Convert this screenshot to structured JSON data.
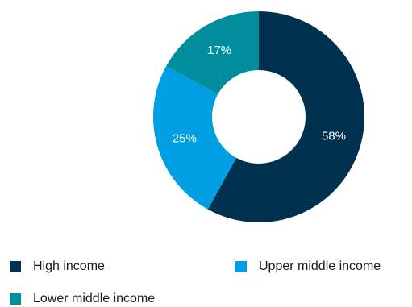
{
  "chart_data": {
    "type": "pie",
    "donut": true,
    "categories": [
      "High income",
      "Upper middle income",
      "Lower middle income"
    ],
    "values": [
      58,
      25,
      17
    ],
    "value_labels": [
      "58%",
      "25%",
      "17%"
    ],
    "colors": [
      "#00324f",
      "#009fe3",
      "#008e9e"
    ],
    "start_angle_deg": 0,
    "direction": "clockwise",
    "legend_position": "bottom"
  },
  "legend": {
    "items": [
      {
        "label": "High income",
        "color": "#00324f"
      },
      {
        "label": "Upper middle income",
        "color": "#009fe3"
      },
      {
        "label": "Lower middle income",
        "color": "#008e9e"
      }
    ]
  }
}
